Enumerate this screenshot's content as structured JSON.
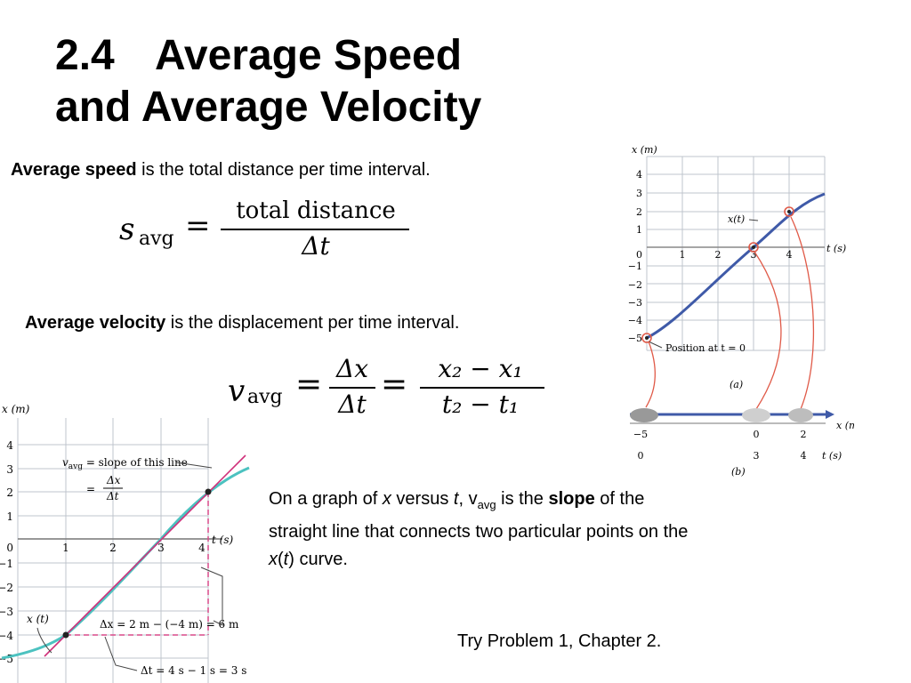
{
  "slide": {
    "title_number": "2.4",
    "title_line1": "Average Speed",
    "title_line2": "and Average Velocity"
  },
  "speed_text": {
    "bold": "Average speed",
    "rest": " is the total distance per time interval."
  },
  "speed_formula": {
    "lhs_var": "s",
    "lhs_sub": "avg",
    "equals": "=",
    "numerator": "total distance",
    "denominator": "Δt"
  },
  "velocity_text": {
    "bold": "Average velocity",
    "rest": " is the displacement per time interval."
  },
  "velocity_formula": {
    "lhs_var": "v",
    "lhs_sub": "avg",
    "equals": "=",
    "frac1_num": "Δx",
    "frac1_den": "Δt",
    "equals2": "=",
    "frac2_num": "x₂ − x₁",
    "frac2_den": "t₂ − t₁"
  },
  "slope_text": {
    "line1_a": "On a graph of ",
    "line1_x": "x",
    "line1_b": " versus ",
    "line1_t": "t",
    "line1_c": ", v",
    "line1_sub": "avg",
    "line1_d": " is the ",
    "line1_bold": "slope",
    "line1_e": " of the",
    "line2": "straight line that connects two particular points on the",
    "line3_x": "x",
    "line3_b": "(",
    "line3_t": "t",
    "line3_c": ") curve."
  },
  "footer": {
    "try_text": "Try Problem 1, Chapter 2."
  },
  "figure_right": {
    "y_axis_label": "x (m)",
    "x_axis_label": "t (s)",
    "y_ticks": [
      "4",
      "3",
      "2",
      "1",
      "0",
      "−1",
      "−2",
      "−3",
      "−4",
      "−5"
    ],
    "x_ticks": [
      "1",
      "2",
      "3",
      "4"
    ],
    "curve_label": "x(t)",
    "start_label": "Position at t = 0",
    "caption_a": "(a)",
    "caption_b": "(b)",
    "line_label": "x (m)",
    "line_t_label": "t (s)",
    "positions": [
      "−5",
      "0",
      "2"
    ],
    "times": [
      "0",
      "3",
      "4"
    ],
    "colors": {
      "curve": "#3f5aa8",
      "marker": "#e05a48",
      "grid": "#bfc4cc"
    }
  },
  "figure_left": {
    "y_axis_label": "x (m)",
    "x_axis_label": "t (s)",
    "y_ticks": [
      "4",
      "3",
      "2",
      "1",
      "0",
      "−1",
      "−2",
      "−3",
      "−4",
      "−5"
    ],
    "x_ticks": [
      "1",
      "2",
      "3",
      "4"
    ],
    "slope_label_v": "v",
    "slope_label_sub": "avg",
    "slope_label_rest": " = slope of this line",
    "slope_eq": "=",
    "slope_frac_num": "Δx",
    "slope_frac_den": "Δt",
    "curve_label": "x (t)",
    "dx_label": "Δx = 2 m − (−4 m) = 6 m",
    "dt_label": "Δt = 4 s − 1 s = 3 s",
    "colors": {
      "curve": "#4cc2c0",
      "line": "#d0307a",
      "dashed": "#d84a8a",
      "grid": "#bfc4cc"
    }
  }
}
